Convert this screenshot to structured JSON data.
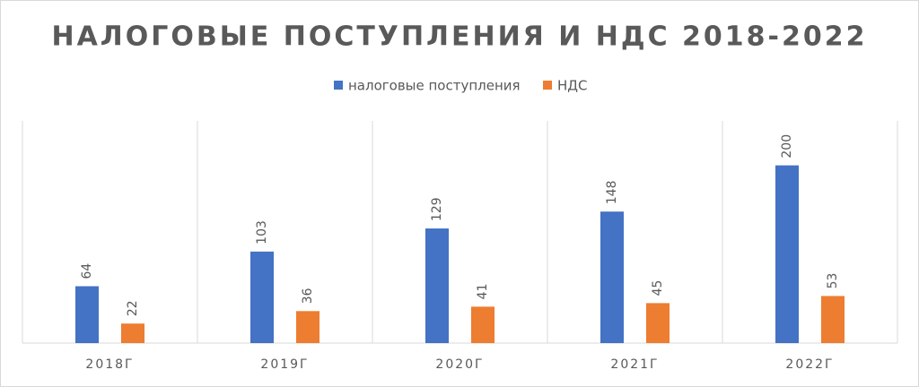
{
  "chart_data": {
    "type": "bar",
    "title": "НАЛОГОВЫЕ ПОСТУПЛЕНИЯ И НДС 2018-2022",
    "categories": [
      "2018Г",
      "2019Г",
      "2020Г",
      "2021Г",
      "2022Г"
    ],
    "series": [
      {
        "name": "налоговые поступления",
        "color": "#4472c4",
        "values": [
          64,
          103,
          129,
          148,
          200
        ]
      },
      {
        "name": "НДС",
        "color": "#ed7d31",
        "values": [
          22,
          36,
          41,
          45,
          53
        ]
      }
    ],
    "legend": "top"
  }
}
